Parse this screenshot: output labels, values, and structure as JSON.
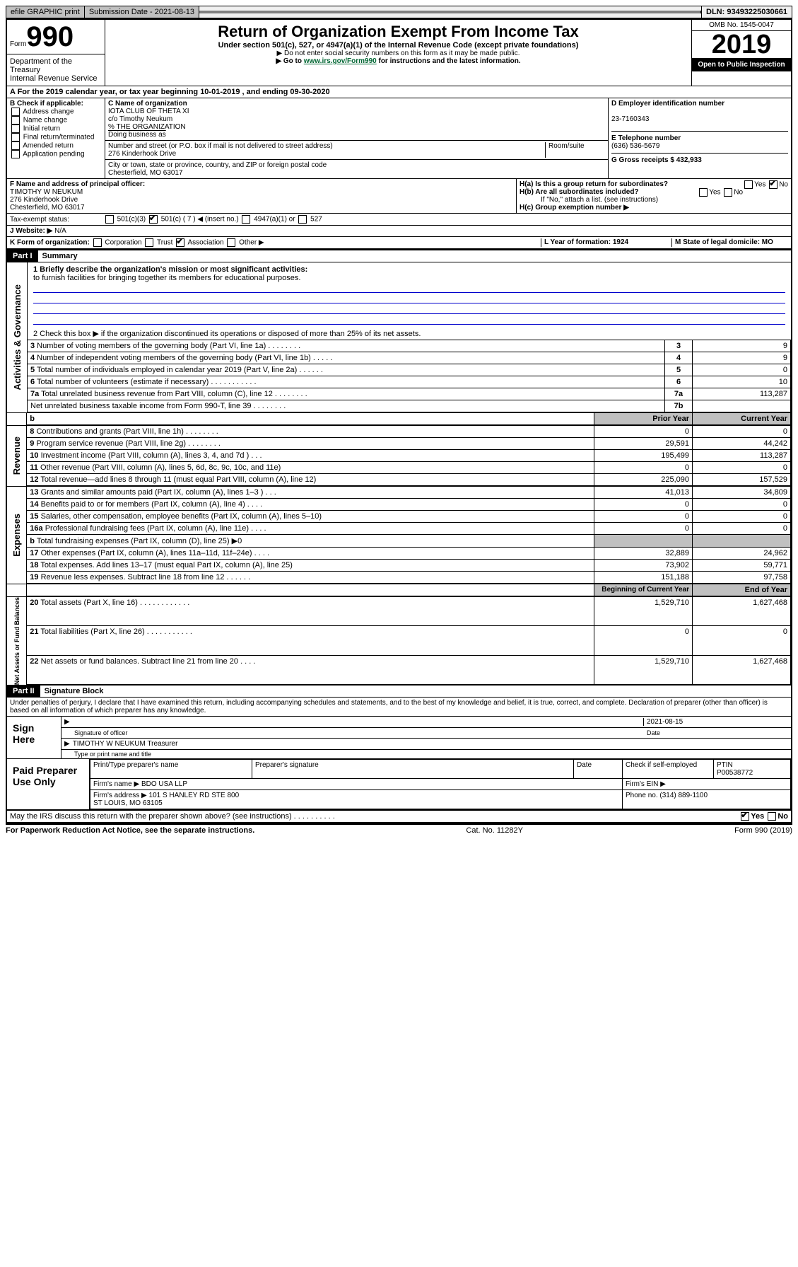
{
  "top": {
    "efile": "efile GRAPHIC print",
    "subdate_label": "Submission Date - 2021-08-13",
    "dln": "DLN: 93493225030661"
  },
  "header": {
    "form_prefix": "Form",
    "form_no": "990",
    "title": "Return of Organization Exempt From Income Tax",
    "subtitle": "Under section 501(c), 527, or 4947(a)(1) of the Internal Revenue Code (except private foundations)",
    "note1": "▶ Do not enter social security numbers on this form as it may be made public.",
    "note2_pre": "▶ Go to ",
    "note2_link": "www.irs.gov/Form990",
    "note2_post": " for instructions and the latest information.",
    "omb": "OMB No. 1545-0047",
    "year": "2019",
    "inspect": "Open to Public Inspection",
    "dept": "Department of the Treasury\nInternal Revenue Service"
  },
  "row_a": "A   For the 2019 calendar year, or tax year beginning 10-01-2019     , and ending 09-30-2020",
  "section_b": {
    "title": "B Check if applicable:",
    "opts": [
      "Address change",
      "Name change",
      "Initial return",
      "Final return/terminated",
      "Amended return",
      "Application pending"
    ]
  },
  "section_c": {
    "label_name": "C Name of organization",
    "name": "IOTA CLUB OF THETA XI",
    "co": "c/o Timothy Neukum",
    "pct": "% THE ORGANIZATION",
    "dba_label": "Doing business as",
    "addr_label": "Number and street (or P.O. box if mail is not delivered to street address)",
    "room": "Room/suite",
    "addr": "276 Kinderhook Drive",
    "city_label": "City or town, state or province, country, and ZIP or foreign postal code",
    "city": "Chesterfield, MO  63017"
  },
  "section_d": {
    "label": "D Employer identification number",
    "val": "23-7160343"
  },
  "section_e": {
    "label": "E Telephone number",
    "val": "(636) 536-5679"
  },
  "section_g": {
    "label": "G Gross receipts $ 432,933"
  },
  "section_f": {
    "label": "F  Name and address of principal officer:",
    "name": "TIMOTHY W NEUKUM",
    "addr1": "276 Kinderhook Drive",
    "addr2": "Chesterfield, MO  63017"
  },
  "section_h": {
    "a": "H(a)  Is this a group return for subordinates?",
    "b": "H(b)  Are all subordinates included?",
    "bnote": "If \"No,\" attach a list. (see instructions)",
    "c": "H(c)  Group exemption number ▶"
  },
  "tax_status": {
    "label": "Tax-exempt status:",
    "o1": "501(c)(3)",
    "o2": "501(c) ( 7 ) ◀ (insert no.)",
    "o3": "4947(a)(1) or",
    "o4": "527"
  },
  "section_j": {
    "label": "J Website: ▶",
    "val": "N/A"
  },
  "section_k": "K Form of organization:",
  "k_opts": [
    "Corporation",
    "Trust",
    "Association",
    "Other ▶"
  ],
  "section_l": {
    "label": "L Year of formation: 1924"
  },
  "section_m": {
    "label": "M State of legal domicile: MO"
  },
  "part1": {
    "header": "Part I",
    "title": "Summary",
    "q1": "1  Briefly describe the organization's mission or most significant activities:",
    "mission": "to furnish facilities for bringing together its members for educational purposes.",
    "q2": "2   Check this box ▶       if the organization discontinued its operations or disposed of more than 25% of its net assets.",
    "rows_ag": [
      {
        "n": "3",
        "d": "Number of voting members of the governing body (Part VI, line 1a)   .    .    .    .    .    .    .    .",
        "c": "3",
        "v": "9"
      },
      {
        "n": "4",
        "d": "Number of independent voting members of the governing body (Part VI, line 1b)   .    .    .    .    .",
        "c": "4",
        "v": "9"
      },
      {
        "n": "5",
        "d": "Total number of individuals employed in calendar year 2019 (Part V, line 2a)   .    .    .    .    .    .",
        "c": "5",
        "v": "0"
      },
      {
        "n": "6",
        "d": "Total number of volunteers (estimate if necessary)   .    .    .    .    .    .    .    .    .    .    .",
        "c": "6",
        "v": "10"
      },
      {
        "n": "7a",
        "d": "Total unrelated business revenue from Part VIII, column (C), line 12   .    .    .    .    .    .    .    .",
        "c": "7a",
        "v": "113,287"
      },
      {
        "n": "",
        "d": "Net unrelated business taxable income from Form 990-T, line 39   .    .    .    .    .    .    .    .",
        "c": "7b",
        "v": ""
      }
    ],
    "hdr_prior": "Prior Year",
    "hdr_curr": "Current Year",
    "rev": [
      {
        "n": "8",
        "d": "Contributions and grants (Part VIII, line 1h)   .    .    .    .    .    .    .    .",
        "p": "0",
        "c": "0"
      },
      {
        "n": "9",
        "d": "Program service revenue (Part VIII, line 2g)   .    .    .    .    .    .    .    .",
        "p": "29,591",
        "c": "44,242"
      },
      {
        "n": "10",
        "d": "Investment income (Part VIII, column (A), lines 3, 4, and 7d )   .    .    .",
        "p": "195,499",
        "c": "113,287"
      },
      {
        "n": "11",
        "d": "Other revenue (Part VIII, column (A), lines 5, 6d, 8c, 9c, 10c, and 11e)",
        "p": "0",
        "c": "0"
      },
      {
        "n": "12",
        "d": "Total revenue—add lines 8 through 11 (must equal Part VIII, column (A), line 12)",
        "p": "225,090",
        "c": "157,529"
      }
    ],
    "exp": [
      {
        "n": "13",
        "d": "Grants and similar amounts paid (Part IX, column (A), lines 1–3 )   .    .    .",
        "p": "41,013",
        "c": "34,809"
      },
      {
        "n": "14",
        "d": "Benefits paid to or for members (Part IX, column (A), line 4)   .    .    .    .",
        "p": "0",
        "c": "0"
      },
      {
        "n": "15",
        "d": "Salaries, other compensation, employee benefits (Part IX, column (A), lines 5–10)",
        "p": "0",
        "c": "0"
      },
      {
        "n": "16a",
        "d": "Professional fundraising fees (Part IX, column (A), line 11e)   .    .    .    .",
        "p": "0",
        "c": "0"
      },
      {
        "n": "b",
        "d": "Total fundraising expenses (Part IX, column (D), line 25) ▶0",
        "p": "",
        "c": "",
        "shade": true
      },
      {
        "n": "17",
        "d": "Other expenses (Part IX, column (A), lines 11a–11d, 11f–24e)   .    .    .    .",
        "p": "32,889",
        "c": "24,962"
      },
      {
        "n": "18",
        "d": "Total expenses. Add lines 13–17 (must equal Part IX, column (A), line 25)",
        "p": "73,902",
        "c": "59,771"
      },
      {
        "n": "19",
        "d": "Revenue less expenses. Subtract line 18 from line 12   .    .    .    .    .    .",
        "p": "151,188",
        "c": "97,758"
      }
    ],
    "hdr_beg": "Beginning of Current Year",
    "hdr_end": "End of Year",
    "na": [
      {
        "n": "20",
        "d": "Total assets (Part X, line 16)   .    .    .    .    .    .    .    .    .    .    .    .",
        "p": "1,529,710",
        "c": "1,627,468"
      },
      {
        "n": "21",
        "d": "Total liabilities (Part X, line 26)   .    .    .    .    .    .    .    .    .    .    .",
        "p": "0",
        "c": "0"
      },
      {
        "n": "22",
        "d": "Net assets or fund balances. Subtract line 21 from line 20   .    .    .    .",
        "p": "1,529,710",
        "c": "1,627,468"
      }
    ],
    "side_ag": "Activities & Governance",
    "side_rev": "Revenue",
    "side_exp": "Expenses",
    "side_na": "Net Assets or Fund Balances"
  },
  "part2": {
    "header": "Part II",
    "title": "Signature Block",
    "penalty": "Under penalties of perjury, I declare that I have examined this return, including accompanying schedules and statements, and to the best of my knowledge and belief, it is true, correct, and complete. Declaration of preparer (other than officer) is based on all information of which preparer has any knowledge.",
    "sign_here": "Sign Here",
    "sig_officer": "Signature of officer",
    "sig_date": "2021-08-15",
    "date_label": "Date",
    "officer_name": "TIMOTHY W NEUKUM  Treasurer",
    "type_label": "Type or print name and title",
    "paid": "Paid Preparer Use Only",
    "prep_name_label": "Print/Type preparer's name",
    "prep_sig_label": "Preparer's signature",
    "prep_date_label": "Date",
    "prep_self": "Check        if self-employed",
    "ptin_label": "PTIN",
    "ptin": "P00538772",
    "firm_name_label": "Firm's name     ▶",
    "firm_name": "BDO USA LLP",
    "firm_ein_label": "Firm's EIN ▶",
    "firm_addr_label": "Firm's address ▶",
    "firm_addr": "101 S HANLEY RD STE 800\nST LOUIS, MO  63105",
    "phone_label": "Phone no. (314) 889-1100",
    "discuss": "May the IRS discuss this return with the preparer shown above? (see instructions)   .    .    .    .    .    .    .    .    .    ."
  },
  "footer": {
    "left": "For Paperwork Reduction Act Notice, see the separate instructions.",
    "mid": "Cat. No. 11282Y",
    "right": "Form 990 (2019)"
  },
  "yes": "Yes",
  "no": "No"
}
